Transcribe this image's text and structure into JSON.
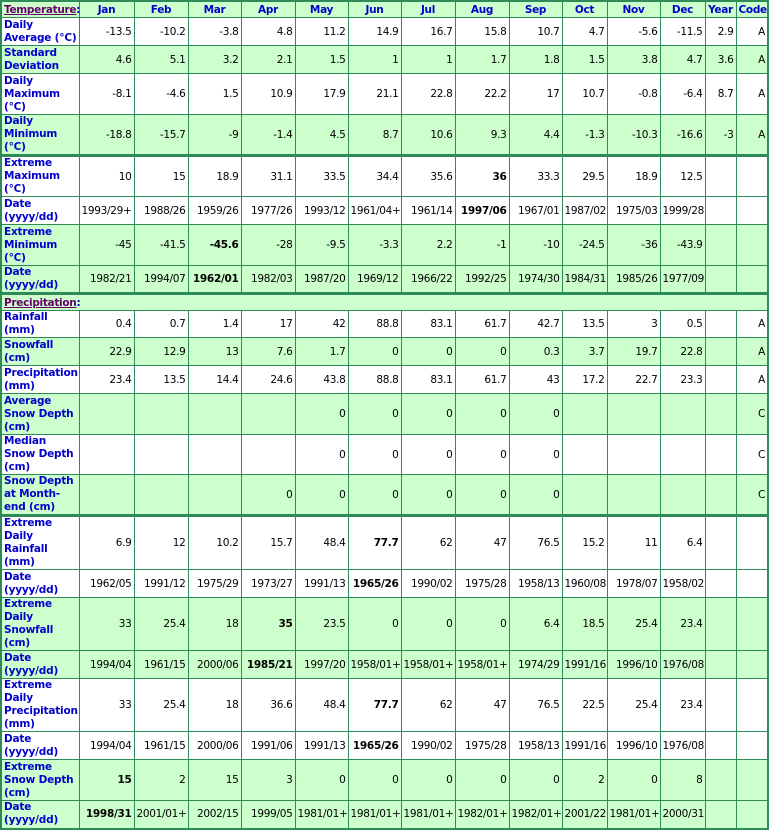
{
  "header": {
    "section_label": "Temperature",
    "months": [
      "Jan",
      "Feb",
      "Mar",
      "Apr",
      "May",
      "Jun",
      "Jul",
      "Aug",
      "Sep",
      "Oct",
      "Nov",
      "Dec"
    ],
    "year": "Year",
    "code": "Code"
  },
  "colors": {
    "border": "#2e8b57",
    "row_alt": "#ccffcc",
    "label": "#0000cc",
    "section": "#660066"
  },
  "temperature_rows": [
    {
      "label": "Daily Average (°C)",
      "values": [
        "-13.5",
        "-10.2",
        "-3.8",
        "4.8",
        "11.2",
        "14.9",
        "16.7",
        "15.8",
        "10.7",
        "4.7",
        "-5.6",
        "-11.5"
      ],
      "year": "2.9",
      "code": "A",
      "bold": []
    },
    {
      "label": "Standard Deviation",
      "values": [
        "4.6",
        "5.1",
        "3.2",
        "2.1",
        "1.5",
        "1",
        "1",
        "1.7",
        "1.8",
        "1.5",
        "3.8",
        "4.7"
      ],
      "year": "3.6",
      "code": "A",
      "bold": []
    },
    {
      "label": "Daily Maximum (°C)",
      "values": [
        "-8.1",
        "-4.6",
        "1.5",
        "10.9",
        "17.9",
        "21.1",
        "22.8",
        "22.2",
        "17",
        "10.7",
        "-0.8",
        "-6.4"
      ],
      "year": "8.7",
      "code": "A",
      "bold": []
    },
    {
      "label": "Daily Minimum (°C)",
      "values": [
        "-18.8",
        "-15.7",
        "-9",
        "-1.4",
        "4.5",
        "8.7",
        "10.6",
        "9.3",
        "4.4",
        "-1.3",
        "-10.3",
        "-16.6"
      ],
      "year": "-3",
      "code": "A",
      "bold": []
    },
    {
      "label": "Extreme Maximum (°C)",
      "values": [
        "10",
        "15",
        "18.9",
        "31.1",
        "33.5",
        "34.4",
        "35.6",
        "36",
        "33.3",
        "29.5",
        "18.9",
        "12.5"
      ],
      "year": "",
      "code": "",
      "bold": [
        7
      ]
    },
    {
      "label": "Date (yyyy/dd)",
      "values": [
        "1993/29+",
        "1988/26",
        "1959/26",
        "1977/26",
        "1993/12",
        "1961/04+",
        "1961/14",
        "1997/06",
        "1967/01",
        "1987/02",
        "1975/03",
        "1999/28"
      ],
      "year": "",
      "code": "",
      "bold": [
        7
      ]
    },
    {
      "label": "Extreme Minimum (°C)",
      "values": [
        "-45",
        "-41.5",
        "-45.6",
        "-28",
        "-9.5",
        "-3.3",
        "2.2",
        "-1",
        "-10",
        "-24.5",
        "-36",
        "-43.9"
      ],
      "year": "",
      "code": "",
      "bold": [
        2
      ]
    },
    {
      "label": "Date (yyyy/dd)",
      "values": [
        "1982/21",
        "1994/07",
        "1962/01",
        "1982/03",
        "1987/20",
        "1969/12",
        "1966/22",
        "1992/25",
        "1974/30",
        "1984/31",
        "1985/26",
        "1977/09"
      ],
      "year": "",
      "code": "",
      "bold": [
        2
      ]
    }
  ],
  "precipitation_section_label": "Precipitation",
  "precipitation_rows": [
    {
      "label": "Rainfall (mm)",
      "values": [
        "0.4",
        "0.7",
        "1.4",
        "17",
        "42",
        "88.8",
        "83.1",
        "61.7",
        "42.7",
        "13.5",
        "3",
        "0.5"
      ],
      "year": "",
      "code": "A",
      "bold": []
    },
    {
      "label": "Snowfall (cm)",
      "values": [
        "22.9",
        "12.9",
        "13",
        "7.6",
        "1.7",
        "0",
        "0",
        "0",
        "0.3",
        "3.7",
        "19.7",
        "22.8"
      ],
      "year": "",
      "code": "A",
      "bold": []
    },
    {
      "label": "Precipitation (mm)",
      "values": [
        "23.4",
        "13.5",
        "14.4",
        "24.6",
        "43.8",
        "88.8",
        "83.1",
        "61.7",
        "43",
        "17.2",
        "22.7",
        "23.3"
      ],
      "year": "",
      "code": "A",
      "bold": []
    },
    {
      "label": "Average Snow Depth (cm)",
      "values": [
        "",
        "",
        "",
        "",
        "0",
        "0",
        "0",
        "0",
        "0",
        "",
        "",
        ""
      ],
      "year": "",
      "code": "C",
      "bold": []
    },
    {
      "label": "Median Snow Depth (cm)",
      "values": [
        "",
        "",
        "",
        "",
        "0",
        "0",
        "0",
        "0",
        "0",
        "",
        "",
        ""
      ],
      "year": "",
      "code": "C",
      "bold": []
    },
    {
      "label": "Snow Depth at Month-end (cm)",
      "values": [
        "",
        "",
        "",
        "0",
        "0",
        "0",
        "0",
        "0",
        "0",
        "",
        "",
        ""
      ],
      "year": "",
      "code": "C",
      "bold": []
    },
    {
      "label": "Extreme Daily Rainfall (mm)",
      "values": [
        "6.9",
        "12",
        "10.2",
        "15.7",
        "48.4",
        "77.7",
        "62",
        "47",
        "76.5",
        "15.2",
        "11",
        "6.4"
      ],
      "year": "",
      "code": "",
      "bold": [
        5
      ]
    },
    {
      "label": "Date (yyyy/dd)",
      "values": [
        "1962/05",
        "1991/12",
        "1975/29",
        "1973/27",
        "1991/13",
        "1965/26",
        "1990/02",
        "1975/28",
        "1958/13",
        "1960/08",
        "1978/07",
        "1958/02"
      ],
      "year": "",
      "code": "",
      "bold": [
        5
      ]
    },
    {
      "label": "Extreme Daily Snowfall (cm)",
      "values": [
        "33",
        "25.4",
        "18",
        "35",
        "23.5",
        "0",
        "0",
        "0",
        "6.4",
        "18.5",
        "25.4",
        "23.4"
      ],
      "year": "",
      "code": "",
      "bold": [
        3
      ]
    },
    {
      "label": "Date (yyyy/dd)",
      "values": [
        "1994/04",
        "1961/15",
        "2000/06",
        "1985/21",
        "1997/20",
        "1958/01+",
        "1958/01+",
        "1958/01+",
        "1974/29",
        "1991/16",
        "1996/10",
        "1976/08"
      ],
      "year": "",
      "code": "",
      "bold": [
        3
      ]
    },
    {
      "label": "Extreme Daily Precipitation (mm)",
      "values": [
        "33",
        "25.4",
        "18",
        "36.6",
        "48.4",
        "77.7",
        "62",
        "47",
        "76.5",
        "22.5",
        "25.4",
        "23.4"
      ],
      "year": "",
      "code": "",
      "bold": [
        5
      ]
    },
    {
      "label": "Date (yyyy/dd)",
      "values": [
        "1994/04",
        "1961/15",
        "2000/06",
        "1991/06",
        "1991/13",
        "1965/26",
        "1990/02",
        "1975/28",
        "1958/13",
        "1991/16",
        "1996/10",
        "1976/08"
      ],
      "year": "",
      "code": "",
      "bold": [
        5
      ]
    },
    {
      "label": "Extreme Snow Depth (cm)",
      "values": [
        "15",
        "2",
        "15",
        "3",
        "0",
        "0",
        "0",
        "0",
        "0",
        "2",
        "0",
        "8"
      ],
      "year": "",
      "code": "",
      "bold": [
        0
      ]
    },
    {
      "label": "Date (yyyy/dd)",
      "values": [
        "1998/31",
        "2001/01+",
        "2002/15",
        "1999/05",
        "1981/01+",
        "1981/01+",
        "1981/01+",
        "1982/01+",
        "1982/01+",
        "2001/22",
        "1981/01+",
        "2000/31"
      ],
      "year": "",
      "code": "",
      "bold": [
        0
      ]
    }
  ]
}
